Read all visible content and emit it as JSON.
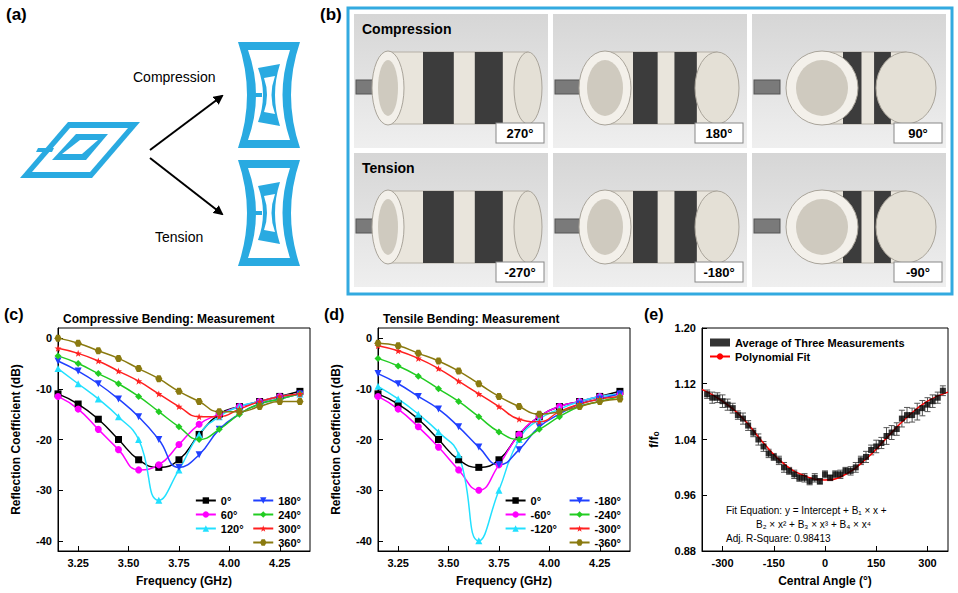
{
  "diagram": {
    "panel": "(a)",
    "labels": [
      "Compression",
      "Tension"
    ]
  },
  "photos": {
    "panel": "(b)",
    "rows": [
      {
        "label": "Compression",
        "angles": [
          "270°",
          "180°",
          "90°"
        ]
      },
      {
        "label": "Tension",
        "angles": [
          "-270°",
          "-180°",
          "-90°"
        ]
      }
    ]
  },
  "chart_data": [
    {
      "type": "line",
      "panel": "(c)",
      "title": "Compressive Bending: Measurement",
      "x_label": "Frequency (GHz)",
      "y_label": "Reflection Coefficient (dB)",
      "x": [
        3.15,
        3.25,
        3.35,
        3.45,
        3.55,
        3.65,
        3.75,
        3.85,
        3.95,
        4.05,
        4.15,
        4.25,
        4.35
      ],
      "xlim": [
        3.15,
        4.4
      ],
      "xticks": [
        3.25,
        {
          "value": 3.5,
          "label": "3.50"
        },
        3.75,
        {
          "value": 4,
          "label": "4.00"
        },
        4.25
      ],
      "ylim": [
        -42,
        2
      ],
      "yticks": [
        -40,
        -30,
        -20,
        -10,
        0
      ],
      "grid": false,
      "legend": "lower right",
      "series": [
        {
          "name": "0°",
          "color": "#000000",
          "marker": "square",
          "values": [
            -11,
            -13,
            -16,
            -20,
            -24,
            -25.5,
            -24,
            -19,
            -15,
            -13.5,
            -12.5,
            -11.5,
            -10.5
          ]
        },
        {
          "name": "60°",
          "color": "#ff00ff",
          "marker": "circle",
          "values": [
            -11.5,
            -14,
            -18,
            -22,
            -26,
            -25,
            -21,
            -17,
            -15,
            -13.5,
            -12.5,
            -11.5,
            -11
          ]
        },
        {
          "name": "120°",
          "color": "#22e0ff",
          "marker": "triangle-up",
          "values": [
            -6,
            -9,
            -12,
            -15.5,
            -20,
            -32,
            -26,
            -19,
            -15.5,
            -13.5,
            -12.5,
            -11.5,
            -11
          ]
        },
        {
          "name": "180°",
          "color": "#2040ff",
          "marker": "triangle-down",
          "values": [
            -4.5,
            -6.5,
            -9,
            -12,
            -15.5,
            -20,
            -25.5,
            -23,
            -18,
            -15,
            -13,
            -12,
            -11
          ]
        },
        {
          "name": "240°",
          "color": "#22cc22",
          "marker": "diamond",
          "values": [
            -3.5,
            -5,
            -7,
            -9,
            -11.5,
            -14.5,
            -17.5,
            -20,
            -18,
            -15,
            -13,
            -12,
            -11
          ]
        },
        {
          "name": "300°",
          "color": "#ff2020",
          "marker": "star",
          "values": [
            -2,
            -3,
            -4.5,
            -6.5,
            -8.5,
            -11,
            -13.5,
            -15.5,
            -15.5,
            -14,
            -12.5,
            -11.5,
            -11
          ]
        },
        {
          "name": "360°",
          "color": "#8a7a10",
          "marker": "hexagon",
          "values": [
            0,
            -1,
            -2.5,
            -4,
            -6,
            -8,
            -10.5,
            -12.5,
            -14.5,
            -14.5,
            -13.5,
            -12.5,
            -12.5
          ]
        }
      ]
    },
    {
      "type": "line",
      "panel": "(d)",
      "title": "Tensile Bending: Measurement",
      "x_label": "Frequency (GHz)",
      "y_label": "Reflection Coefficient (dB)",
      "x": [
        3.15,
        3.25,
        3.35,
        3.45,
        3.55,
        3.65,
        3.75,
        3.85,
        3.95,
        4.05,
        4.15,
        4.25,
        4.35
      ],
      "xlim": [
        3.15,
        4.4
      ],
      "xticks": [
        3.25,
        {
          "value": 3.5,
          "label": "3.50"
        },
        3.75,
        {
          "value": 4,
          "label": "4.00"
        },
        4.25
      ],
      "ylim": [
        -42,
        2
      ],
      "yticks": [
        -40,
        -30,
        -20,
        -10,
        0
      ],
      "grid": false,
      "legend": "lower right",
      "series": [
        {
          "name": "0°",
          "color": "#000000",
          "marker": "square",
          "values": [
            -11,
            -13,
            -16,
            -20,
            -24,
            -25.5,
            -24,
            -19,
            -15.5,
            -13.5,
            -12.5,
            -11.5,
            -10.5
          ]
        },
        {
          "name": "-60°",
          "color": "#ff00ff",
          "marker": "circle",
          "values": [
            -11.5,
            -14,
            -17.5,
            -21.5,
            -26,
            -30,
            -25,
            -19,
            -15.5,
            -13.5,
            -12.5,
            -11.5,
            -11
          ]
        },
        {
          "name": "-120°",
          "color": "#22e0ff",
          "marker": "triangle-up",
          "values": [
            -9.5,
            -12,
            -15,
            -18.5,
            -23,
            -40,
            -30,
            -20,
            -16,
            -14,
            -12.5,
            -11.5,
            -11
          ]
        },
        {
          "name": "-180°",
          "color": "#2040ff",
          "marker": "triangle-down",
          "values": [
            -7,
            -9,
            -11.5,
            -14,
            -17.5,
            -21.5,
            -25,
            -22,
            -17.5,
            -15,
            -13,
            -12,
            -11
          ]
        },
        {
          "name": "-240°",
          "color": "#22cc22",
          "marker": "diamond",
          "values": [
            -4,
            -5.5,
            -7.5,
            -10,
            -12.5,
            -15.5,
            -18.5,
            -20,
            -18,
            -15.5,
            -13.5,
            -12.5,
            -11.5
          ]
        },
        {
          "name": "-300°",
          "color": "#ff2020",
          "marker": "star",
          "values": [
            -1.5,
            -2.5,
            -4,
            -6,
            -8.5,
            -11,
            -13.5,
            -16,
            -16.5,
            -14.5,
            -13,
            -12,
            -11.5
          ]
        },
        {
          "name": "-360°",
          "color": "#8a7a10",
          "marker": "hexagon",
          "values": [
            -1,
            -1.5,
            -3,
            -4.5,
            -6.5,
            -9,
            -11.5,
            -13.5,
            -15,
            -14.5,
            -13.5,
            -12.5,
            -12
          ]
        }
      ]
    },
    {
      "type": "scatter",
      "panel": "(e)",
      "x_label": "Central Angle (°)",
      "y_label": "f/fₒ",
      "xlim": [
        -360,
        360
      ],
      "xticks": [
        -300,
        -150,
        0,
        150,
        300
      ],
      "ylim": [
        0.88,
        1.2
      ],
      "yticks": [
        0.88,
        0.96,
        1.04,
        1.12,
        {
          "value": 1.2,
          "label": "1.20"
        }
      ],
      "grid": false,
      "legend": "upper left",
      "annotations": [
        "Fit Equation: y = Intercept + B₁ × x +",
        "B₂ × x² + B₃ × x³ + B₄ × x⁴",
        "Adj. R-Square: 0.98413"
      ],
      "series": [
        {
          "name": "Average of Three Measurements",
          "type": "scatter",
          "color": "#000000",
          "marker": "square",
          "x": [
            -345,
            -330,
            -315,
            -300,
            -285,
            -270,
            -255,
            -240,
            -225,
            -210,
            -195,
            -180,
            -165,
            -150,
            -135,
            -120,
            -105,
            -90,
            -75,
            -60,
            -45,
            -30,
            -15,
            0,
            15,
            30,
            45,
            60,
            75,
            90,
            105,
            120,
            135,
            150,
            165,
            180,
            195,
            210,
            225,
            240,
            255,
            270,
            285,
            300,
            315,
            330,
            345
          ],
          "values": [
            1.105,
            1.1,
            1.1,
            1.095,
            1.09,
            1.085,
            1.075,
            1.07,
            1.06,
            1.05,
            1.04,
            1.03,
            1.02,
            1.015,
            1.01,
            1.0,
            0.995,
            0.99,
            0.985,
            0.985,
            0.98,
            0.985,
            0.98,
            0.99,
            0.985,
            0.99,
            0.99,
            0.995,
            0.995,
            1.0,
            1.01,
            1.015,
            1.025,
            1.03,
            1.035,
            1.045,
            1.05,
            1.055,
            1.07,
            1.075,
            1.075,
            1.08,
            1.085,
            1.09,
            1.095,
            1.1,
            1.11
          ],
          "errors": [
            0.006,
            0.008,
            0.007,
            0.009,
            0.008,
            0.007,
            0.006,
            0.008,
            0.007,
            0.006,
            0.008,
            0.007,
            0.006,
            0.005,
            0.006,
            0.007,
            0.005,
            0.006,
            0.005,
            0.006,
            0.005,
            0.006,
            0.004,
            0.005,
            0.004,
            0.005,
            0.006,
            0.005,
            0.006,
            0.007,
            0.006,
            0.008,
            0.007,
            0.009,
            0.008,
            0.012,
            0.01,
            0.009,
            0.012,
            0.011,
            0.01,
            0.012,
            0.011,
            0.01,
            0.009,
            0.008,
            0.007
          ]
        },
        {
          "name": "Polynomial Fit",
          "type": "line",
          "color": "#ff0000",
          "x": [
            -360,
            -300,
            -240,
            -180,
            -120,
            -60,
            0,
            60,
            120,
            180,
            240,
            300,
            360
          ],
          "values": [
            1.112,
            1.095,
            1.07,
            1.035,
            1.005,
            0.988,
            0.982,
            0.99,
            1.012,
            1.042,
            1.072,
            1.095,
            1.108
          ]
        }
      ]
    }
  ]
}
